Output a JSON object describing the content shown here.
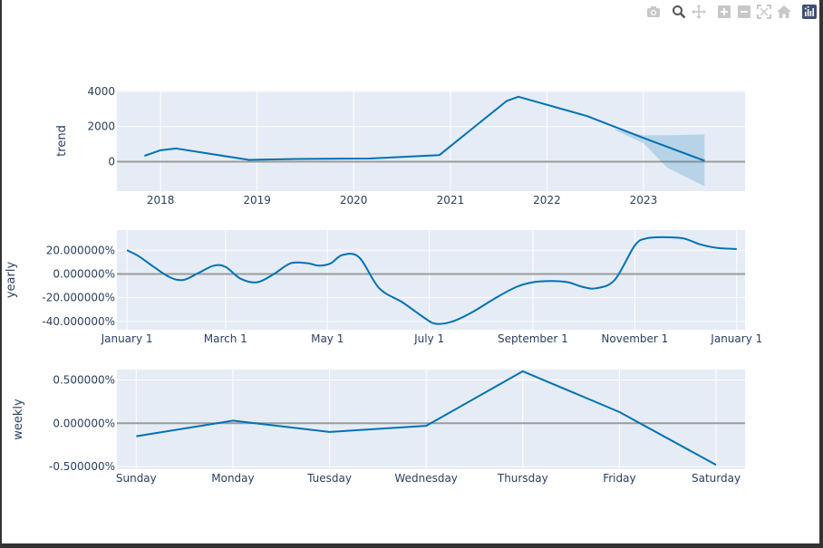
{
  "modebar": {
    "buttons": [
      {
        "name": "camera-icon",
        "title": "Download plot as a png"
      },
      {
        "name": "zoom-icon",
        "title": "Zoom"
      },
      {
        "name": "pan-icon",
        "title": "Pan"
      },
      {
        "name": "zoom-in-icon",
        "title": "Zoom in"
      },
      {
        "name": "zoom-out-icon",
        "title": "Zoom out"
      },
      {
        "name": "autoscale-icon",
        "title": "Autoscale"
      },
      {
        "name": "reset-axes-icon",
        "title": "Reset axes"
      },
      {
        "name": "plotly-logo-icon",
        "title": "Produced with Plotly"
      }
    ]
  },
  "colors": {
    "line": "#0072B2",
    "band": "#0072B2",
    "plot_bg": "#E5ECF6",
    "grid": "#ffffff",
    "zero_line": "#9b9b9b",
    "text": "#2a3f5f"
  },
  "chart_data": [
    {
      "type": "line",
      "name": "trend",
      "ylabel": "trend",
      "x_type": "date",
      "xlim": [
        "2017-07-20",
        "2024-01-20"
      ],
      "ylim": [
        -1680,
        4050
      ],
      "x_ticks": [
        {
          "x": "2018-01-01",
          "label": "2018"
        },
        {
          "x": "2019-01-01",
          "label": "2019"
        },
        {
          "x": "2020-01-01",
          "label": "2020"
        },
        {
          "x": "2021-01-01",
          "label": "2021"
        },
        {
          "x": "2022-01-01",
          "label": "2022"
        },
        {
          "x": "2023-01-01",
          "label": "2023"
        }
      ],
      "y_ticks": [
        {
          "y": 4000,
          "label": "4000"
        },
        {
          "y": 2000,
          "label": "2000"
        },
        {
          "y": 0,
          "label": "0"
        }
      ],
      "series": [
        {
          "x": [
            "2017-11-01",
            "2018-01-01",
            "2018-03-01",
            "2018-12-01",
            "2019-06-01",
            "2020-03-01",
            "2020-11-20",
            "2021-08-01",
            "2021-09-15",
            "2022-06-01",
            "2023-01-01",
            "2023-08-20"
          ],
          "y": [
            330,
            650,
            750,
            100,
            150,
            180,
            370,
            3450,
            3700,
            2600,
            1350,
            50
          ]
        }
      ],
      "band": {
        "x": [
          "2022-09-15",
          "2023-01-01",
          "2023-04-01",
          "2023-08-20"
        ],
        "upper": [
          1850,
          1500,
          1500,
          1550
        ],
        "lower": [
          1800,
          1050,
          -350,
          -1400
        ]
      }
    },
    {
      "type": "line",
      "name": "yearly",
      "ylabel": "yearly",
      "x_type": "date",
      "xlim": [
        "2016-12-26",
        "2018-01-06"
      ],
      "ylim": [
        -47,
        37
      ],
      "x_ticks": [
        {
          "x": "2017-01-01",
          "label": "January  1"
        },
        {
          "x": "2017-03-01",
          "label": "March  1"
        },
        {
          "x": "2017-05-01",
          "label": "May  1"
        },
        {
          "x": "2017-07-01",
          "label": "July  1"
        },
        {
          "x": "2017-09-01",
          "label": "September  1"
        },
        {
          "x": "2017-11-01",
          "label": "November  1"
        },
        {
          "x": "2018-01-01",
          "label": "January  1"
        }
      ],
      "y_ticks": [
        {
          "y": 20,
          "label": "20.000000%"
        },
        {
          "y": 0,
          "label": "0.000000%"
        },
        {
          "y": -20,
          "label": "-20.000000%"
        },
        {
          "y": -40,
          "label": "-40.000000%"
        }
      ],
      "series": [
        {
          "x": [
            "2017-01-01",
            "2017-01-08",
            "2017-01-17",
            "2017-01-27",
            "2017-02-04",
            "2017-02-13",
            "2017-02-22",
            "2017-03-01",
            "2017-03-10",
            "2017-03-20",
            "2017-03-30",
            "2017-04-09",
            "2017-04-19",
            "2017-04-26",
            "2017-05-03",
            "2017-05-10",
            "2017-05-20",
            "2017-06-01",
            "2017-06-15",
            "2017-06-28",
            "2017-07-05",
            "2017-07-15",
            "2017-07-27",
            "2017-08-10",
            "2017-08-22",
            "2017-09-01",
            "2017-09-12",
            "2017-09-22",
            "2017-10-01",
            "2017-10-09",
            "2017-10-20",
            "2017-11-01",
            "2017-11-08",
            "2017-11-18",
            "2017-11-30",
            "2017-12-10",
            "2017-12-20",
            "2018-01-01"
          ],
          "y": [
            20,
            15,
            6,
            -3,
            -5,
            1,
            7,
            6,
            -4,
            -7,
            0,
            9,
            9,
            7,
            9,
            16,
            14,
            -12,
            -24,
            -37,
            -42,
            -40,
            -32,
            -20,
            -11,
            -7,
            -6,
            -7,
            -11,
            -12,
            -5,
            24,
            30,
            31,
            30,
            25,
            22,
            21
          ]
        }
      ]
    },
    {
      "type": "line",
      "name": "weekly",
      "ylabel": "weekly",
      "x_type": "category",
      "xlim": [
        -0.2,
        6.3
      ],
      "ylim": [
        -0.53,
        0.62
      ],
      "categories": [
        "Sunday",
        "Monday",
        "Tuesday",
        "Wednesday",
        "Thursday",
        "Friday",
        "Saturday"
      ],
      "y_ticks": [
        {
          "y": 0.5,
          "label": "0.500000%"
        },
        {
          "y": 0,
          "label": "0.000000%"
        },
        {
          "y": -0.5,
          "label": "-0.500000%"
        }
      ],
      "series": [
        {
          "values": [
            -0.15,
            0.03,
            -0.1,
            -0.03,
            0.6,
            0.13,
            -0.48
          ]
        }
      ]
    }
  ]
}
